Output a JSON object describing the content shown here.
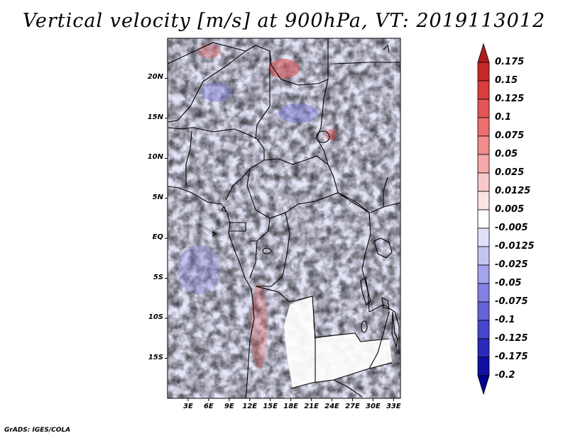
{
  "title": "Vertical velocity [m/s] at 900hPa, VT: 2019113012",
  "footer": "GrADS: IGES/COLA",
  "map": {
    "lon_range": [
      0,
      34
    ],
    "lat_range": [
      -20,
      25
    ],
    "lat_labels": [
      "20N",
      "15N",
      "10N",
      "5N",
      "EQ",
      "5S",
      "10S",
      "15S"
    ],
    "lon_labels": [
      "3E",
      "6E",
      "9E",
      "12E",
      "15E",
      "18E",
      "21E",
      "24E",
      "27E",
      "30E",
      "33E"
    ]
  },
  "colorbar": {
    "labels": [
      "0.175",
      "0.15",
      "0.125",
      "0.1",
      "0.075",
      "0.05",
      "0.025",
      "0.0125",
      "0.005",
      "-0.005",
      "-0.0125",
      "-0.025",
      "-0.05",
      "-0.075",
      "-0.1",
      "-0.125",
      "-0.175",
      "-0.2"
    ],
    "colors": [
      "#b01c1c",
      "#c82828",
      "#dc3c3c",
      "#e45656",
      "#ec7070",
      "#f08c8c",
      "#f4a8a8",
      "#f8c8c8",
      "#fce4e4",
      "#ffffff",
      "#e0e0fa",
      "#c4c4f4",
      "#a4a4ec",
      "#8282e2",
      "#6464d8",
      "#4646ca",
      "#2a2aba",
      "#1010a4",
      "#000090"
    ]
  }
}
